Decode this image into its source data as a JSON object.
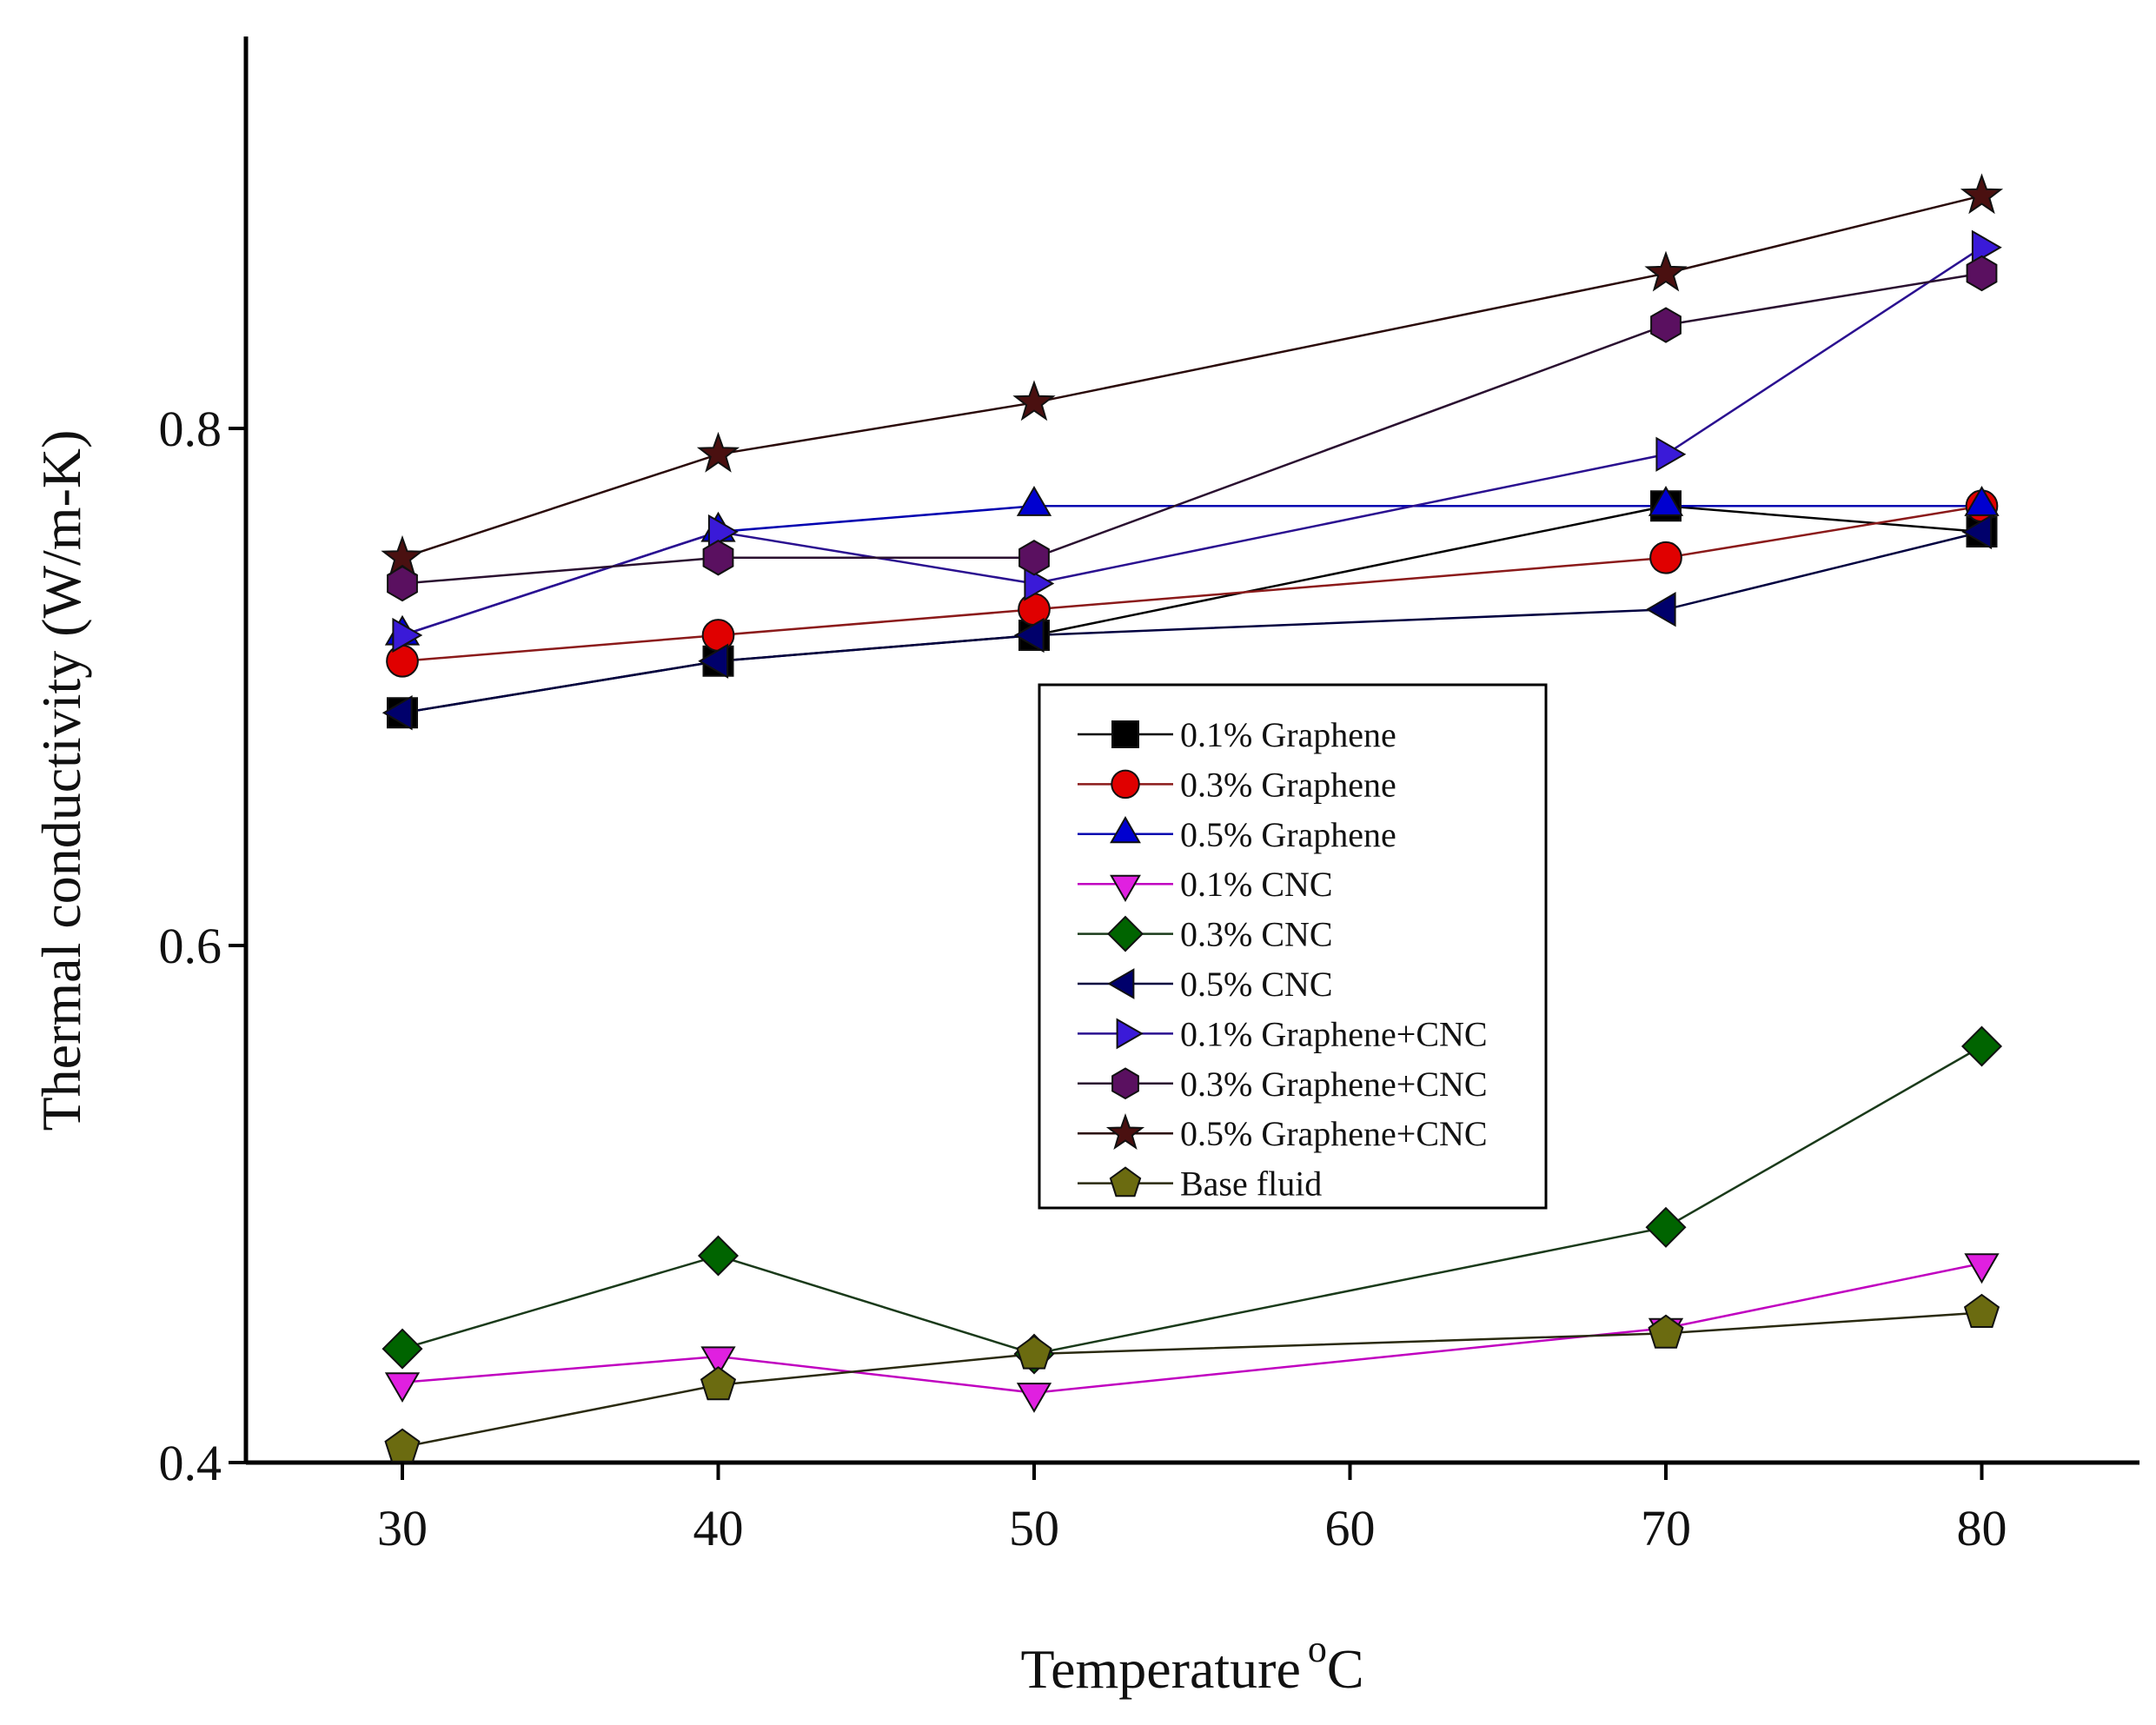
{
  "chart_data": {
    "type": "line",
    "title": "",
    "xlabel": "Temperature",
    "xlabel_superscript": "o",
    "xlabel_unit": "C",
    "ylabel": "Thermal conductivity (W/m-K)",
    "xlim": [
      25,
      85
    ],
    "ylim": [
      0.4,
      0.96
    ],
    "x_ticks": [
      30,
      40,
      50,
      60,
      70,
      80
    ],
    "x_tick_labels": [
      "30",
      "40",
      "50",
      "60",
      "70",
      "80"
    ],
    "y_ticks": [
      0.4,
      0.6,
      0.8
    ],
    "y_tick_labels": [
      "0.4",
      "0.6",
      "0.8"
    ],
    "grid": false,
    "legend_position": "center-right",
    "x": [
      30,
      40,
      50,
      70,
      80
    ],
    "series": [
      {
        "name": "0.1% Graphene",
        "marker": "square",
        "color": "#000000",
        "line_color": "#000000",
        "values": [
          0.69,
          0.71,
          0.72,
          0.77,
          0.76
        ]
      },
      {
        "name": "0.3% Graphene",
        "marker": "circle",
        "color": "#e00000",
        "line_color": "#8b1a1a",
        "values": [
          0.71,
          0.72,
          0.73,
          0.75,
          0.77
        ]
      },
      {
        "name": "0.5% Graphene",
        "marker": "triangle-up",
        "color": "#0000d0",
        "line_color": "#0000b0",
        "values": [
          0.72,
          0.76,
          0.77,
          0.77,
          0.77
        ]
      },
      {
        "name": "0.1% CNC",
        "marker": "triangle-down",
        "color": "#e020e0",
        "line_color": "#c000c0",
        "values": [
          0.431,
          0.441,
          0.427,
          0.452,
          0.477
        ]
      },
      {
        "name": "0.3% CNC",
        "marker": "diamond",
        "color": "#006400",
        "line_color": "#1a3a1a",
        "values": [
          0.444,
          0.48,
          0.442,
          0.491,
          0.561
        ]
      },
      {
        "name": "0.5% CNC",
        "marker": "triangle-left",
        "color": "#00006b",
        "line_color": "#000040",
        "values": [
          0.69,
          0.71,
          0.72,
          0.73,
          0.76
        ]
      },
      {
        "name": "0.1% Graphene+CNC",
        "marker": "triangle-right",
        "color": "#3a1ad8",
        "line_color": "#2a1090",
        "values": [
          0.72,
          0.76,
          0.74,
          0.79,
          0.87
        ]
      },
      {
        "name": "0.3% Graphene+CNC",
        "marker": "hexagon",
        "color": "#5a1060",
        "line_color": "#2a1030",
        "values": [
          0.74,
          0.75,
          0.75,
          0.84,
          0.86
        ]
      },
      {
        "name": "0.5% Graphene+CNC",
        "marker": "star",
        "color": "#4a1010",
        "line_color": "#2a0a0a",
        "values": [
          0.75,
          0.79,
          0.81,
          0.86,
          0.89
        ]
      },
      {
        "name": "Base fluid",
        "marker": "pentagon",
        "color": "#6b6b10",
        "line_color": "#2a2a10",
        "values": [
          0.406,
          0.43,
          0.442,
          0.45,
          0.458
        ]
      }
    ]
  }
}
